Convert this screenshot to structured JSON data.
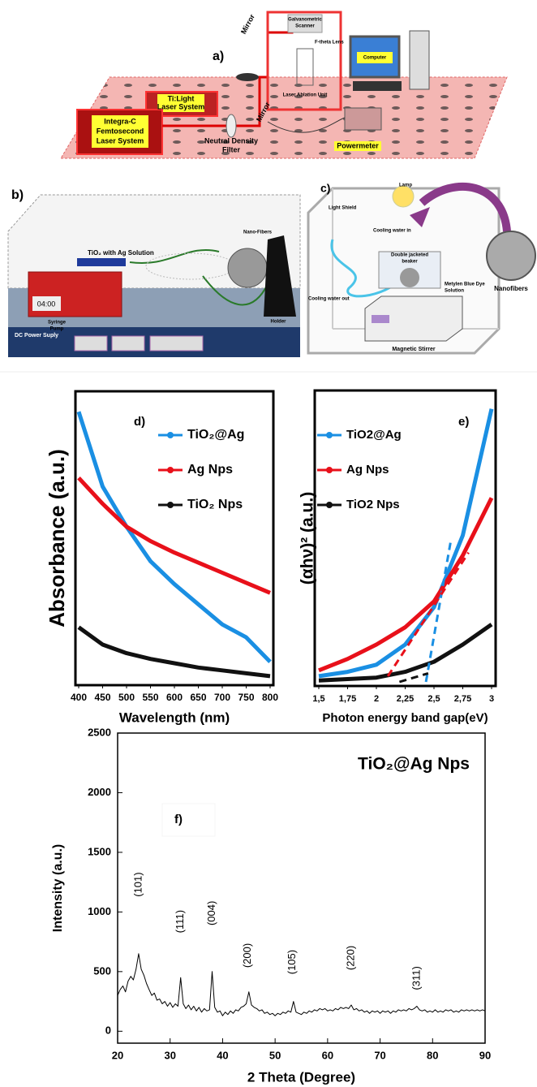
{
  "panel_a": {
    "label": "a)",
    "texts": [
      "Mirror",
      "Galvanometric",
      "Scanner",
      "F-theta Lens",
      "Laser Ablation Unit",
      "Computer",
      "Ti:Light",
      "Laser System",
      "Integra-C",
      "Femtosecond",
      "Laser System",
      "Neutral Density",
      "Filter",
      "Mirror",
      "Powermeter"
    ]
  },
  "panel_b": {
    "label": "b)",
    "texts": [
      "TiO₂ with Ag Solution",
      "Nano-Fibers",
      "Syringe",
      "Pump",
      "Holder",
      "DC Power Suply",
      "04:00"
    ]
  },
  "panel_c": {
    "label": "c)",
    "texts": [
      "Lamp",
      "Light Shield",
      "Cooling water in",
      "Double jacketed",
      "beaker",
      "Metylen Blue Dye",
      "Solution",
      "Cooling water out",
      "Magnetic Stirrer",
      "Nanofibers"
    ]
  },
  "chart_data": [
    {
      "type": "line",
      "panel_label": "d)",
      "xlabel": "Wavelength (nm)",
      "ylabel": "Absorbance (a.u.)",
      "x": [
        400,
        450,
        500,
        550,
        600,
        650,
        700,
        750,
        800
      ],
      "xlim": [
        400,
        800
      ],
      "xticks": [
        400,
        450,
        500,
        550,
        600,
        650,
        700,
        750,
        800
      ],
      "ylim": [
        0,
        1
      ],
      "legend": "upper right",
      "series": [
        {
          "name": "TiO₂@Ag",
          "color": "#1a8fe3",
          "values": [
            0.94,
            0.68,
            0.54,
            0.42,
            0.34,
            0.27,
            0.2,
            0.155,
            0.07
          ]
        },
        {
          "name": "Ag Nps",
          "color": "#e8101a",
          "values": [
            0.71,
            0.62,
            0.54,
            0.49,
            0.45,
            0.415,
            0.38,
            0.345,
            0.31
          ]
        },
        {
          "name": "TiO₂ Nps",
          "color": "#111111",
          "values": [
            0.19,
            0.13,
            0.1,
            0.08,
            0.065,
            0.05,
            0.04,
            0.03,
            0.02
          ]
        }
      ]
    },
    {
      "type": "line",
      "panel_label": "e)",
      "xlabel": "Photon energy band gap(eV)",
      "ylabel": "(αhν)²  (a.u.)",
      "x": [
        1.5,
        1.75,
        2,
        2.25,
        2.5,
        2.75,
        3
      ],
      "xlim": [
        1.5,
        3
      ],
      "xticks": [
        {
          "value": 1.5,
          "label": "1,5"
        },
        {
          "value": 1.75,
          "label": "1,75"
        },
        2,
        {
          "value": 2.25,
          "label": "2,25"
        },
        {
          "value": 2.5,
          "label": "2,5"
        },
        {
          "value": 2.75,
          "label": "2,75"
        },
        3
      ],
      "ylim": [
        0,
        1
      ],
      "legend": "upper left",
      "series": [
        {
          "name": "TiO2@Ag",
          "color": "#1a8fe3",
          "values": [
            0.02,
            0.035,
            0.06,
            0.13,
            0.26,
            0.51,
            0.95
          ]
        },
        {
          "name": "Ag Nps",
          "color": "#e8101a",
          "values": [
            0.04,
            0.08,
            0.13,
            0.19,
            0.28,
            0.44,
            0.64
          ]
        },
        {
          "name": "TiO2 Nps",
          "color": "#111111",
          "values": [
            0.005,
            0.01,
            0.015,
            0.035,
            0.07,
            0.13,
            0.2
          ]
        }
      ],
      "fit_lines": [
        {
          "color": "#1a8fe3",
          "x": [
            2.43,
            2.65
          ],
          "values": [
            0,
            0.5
          ]
        },
        {
          "color": "#e8101a",
          "x": [
            2.1,
            2.8
          ],
          "values": [
            0.02,
            0.45
          ]
        },
        {
          "color": "#111111",
          "x": [
            2.2,
            2.45
          ],
          "values": [
            0,
            0.03
          ]
        }
      ]
    },
    {
      "type": "line",
      "title": "TiO₂@Ag Nps",
      "panel_label": "f)",
      "xlabel": "2 Theta (Degree)",
      "ylabel": "Intensity (a.u.)",
      "x": [
        20,
        20.5,
        21,
        21.5,
        22,
        22.5,
        23,
        23.5,
        24,
        24.5,
        25,
        25.5,
        26,
        26.5,
        27,
        27.5,
        28,
        28.5,
        29,
        29.5,
        30,
        30.5,
        31,
        31.5,
        32,
        32.5,
        33,
        33.5,
        34,
        34.5,
        35,
        35.5,
        36,
        36.5,
        37,
        37.5,
        38,
        38.5,
        39,
        39.5,
        40,
        40.5,
        41,
        41.5,
        42,
        42.5,
        43,
        43.5,
        44,
        44.5,
        45,
        45.5,
        46,
        46.5,
        47,
        47.5,
        48,
        48.5,
        49,
        49.5,
        50,
        50.5,
        51,
        51.5,
        52,
        52.5,
        53,
        53.5,
        54,
        54.5,
        55,
        55.5,
        56,
        56.5,
        57,
        57.5,
        58,
        58.5,
        59,
        59.5,
        60,
        60.5,
        61,
        61.5,
        62,
        62.5,
        63,
        63.5,
        64,
        64.5,
        65,
        65.5,
        66,
        66.5,
        67,
        67.5,
        68,
        68.5,
        69,
        69.5,
        70,
        70.5,
        71,
        71.5,
        72,
        72.5,
        73,
        73.5,
        74,
        74.5,
        75,
        75.5,
        76,
        76.5,
        77,
        77.5,
        78,
        78.5,
        79,
        79.5,
        80,
        80.5,
        81,
        81.5,
        82,
        82.5,
        83,
        83.5,
        84,
        84.5,
        85,
        85.5,
        86,
        86.5,
        87,
        87.5,
        88,
        88.5,
        89,
        89.5,
        90
      ],
      "xlim": [
        20,
        90
      ],
      "xticks": [
        20,
        30,
        40,
        50,
        60,
        70,
        80,
        90
      ],
      "ylim": [
        -100,
        2500
      ],
      "yticks": [
        0,
        500,
        1000,
        1500,
        2000,
        2500
      ],
      "series": [
        {
          "color": "#000000",
          "values": [
            300,
            350,
            380,
            330,
            420,
            460,
            430,
            520,
            650,
            520,
            470,
            400,
            350,
            300,
            320,
            260,
            270,
            230,
            250,
            210,
            240,
            200,
            230,
            210,
            450,
            230,
            190,
            220,
            180,
            210,
            170,
            200,
            160,
            190,
            170,
            180,
            500,
            200,
            160,
            170,
            130,
            160,
            140,
            170,
            150,
            180,
            170,
            200,
            210,
            230,
            330,
            220,
            200,
            190,
            170,
            180,
            150,
            160,
            140,
            150,
            130,
            150,
            140,
            160,
            150,
            170,
            160,
            250,
            160,
            150,
            140,
            160,
            150,
            170,
            160,
            180,
            170,
            190,
            180,
            190,
            170,
            180,
            170,
            190,
            180,
            200,
            190,
            200,
            190,
            220,
            180,
            190,
            170,
            180,
            160,
            170,
            150,
            170,
            160,
            170,
            150,
            170,
            160,
            170,
            150,
            170,
            160,
            180,
            170,
            180,
            170,
            190,
            180,
            190,
            210,
            180,
            170,
            180,
            160,
            170,
            160,
            180,
            160,
            170,
            160,
            180,
            170,
            180,
            160,
            170,
            160,
            180,
            170,
            180,
            170,
            180,
            170,
            180,
            170,
            180,
            170
          ]
        }
      ],
      "annotations": [
        {
          "text": "(101)",
          "x": 24,
          "y": 1230
        },
        {
          "text": "(111)",
          "x": 32,
          "y": 920
        },
        {
          "text": "(004)",
          "x": 38,
          "y": 990
        },
        {
          "text": "(200)",
          "x": 44.8,
          "y": 635
        },
        {
          "text": "(105)",
          "x": 53.3,
          "y": 580
        },
        {
          "text": "(220)",
          "x": 64.5,
          "y": 615
        },
        {
          "text": "(311)",
          "x": 77,
          "y": 445
        }
      ]
    }
  ]
}
